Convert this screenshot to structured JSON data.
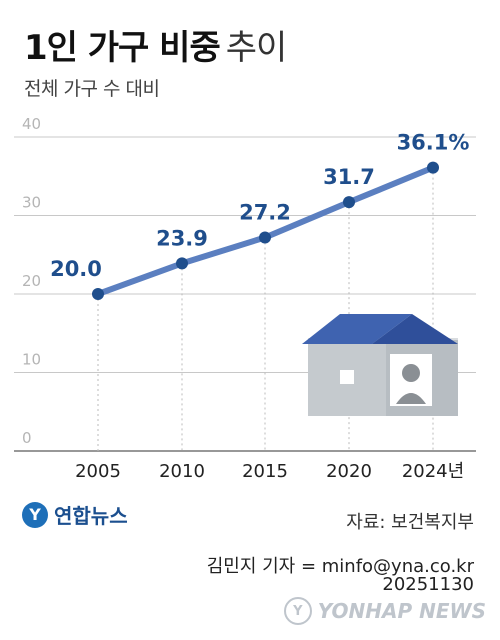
{
  "header": {
    "title_bold": "1인 가구 비중",
    "title_light": "추이",
    "subtitle": "전체 가구 수 대비"
  },
  "chart_data": {
    "type": "line",
    "title": "1인 가구 비중 추이",
    "subtitle": "전체 가구 수 대비",
    "x": [
      "2005",
      "2010",
      "2015",
      "2020",
      "2024년"
    ],
    "series": [
      {
        "values": [
          20.0,
          23.9,
          27.2,
          31.7,
          36.1
        ]
      }
    ],
    "data_labels": [
      "20.0",
      "23.9",
      "27.2",
      "31.7",
      "36.1%"
    ],
    "yticks": [
      "0",
      "10",
      "20",
      "30",
      "40"
    ],
    "ylim": [
      0,
      40
    ],
    "grid": true,
    "colors": {
      "line": "#5b7fc0",
      "marker": "#1f4e8c",
      "label": "#1f4e8c",
      "grid": "#c8c8c8"
    }
  },
  "footer": {
    "source": "자료: 보건복지부",
    "credit": "김민지 기자 = minfo@yna.co.kr",
    "date": "20251130",
    "logo_text": "연합뉴스",
    "watermark": "YONHAP NEWS"
  }
}
